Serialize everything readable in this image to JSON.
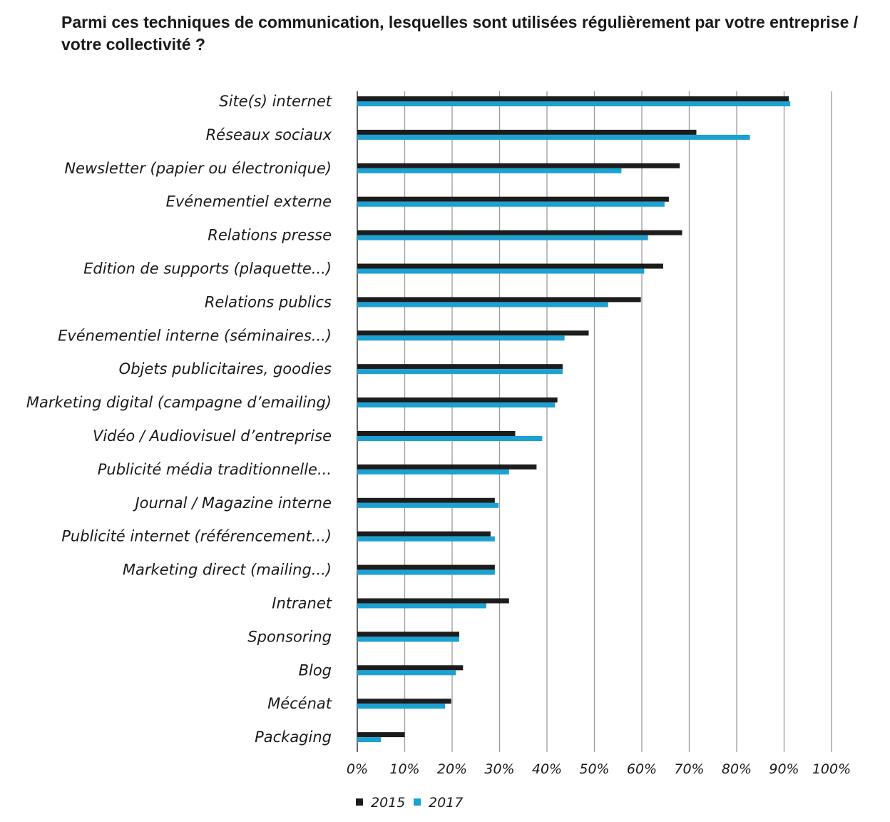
{
  "chart_data": {
    "type": "bar",
    "orientation": "horizontal",
    "title": "Parmi ces techniques de communication, lesquelles sont utilisées régulièrement par votre entreprise / votre collectivité ?",
    "categories": [
      "Site(s) internet",
      "Réseaux sociaux",
      "Newsletter (papier ou électronique)",
      "Evénementiel externe",
      "Relations presse",
      "Edition de supports (plaquette...)",
      "Relations publics",
      "Evénementiel interne (séminaires...)",
      "Objets publicitaires, goodies",
      "Marketing digital (campagne d’emailing)",
      "Vidéo / Audiovisuel d’entreprise",
      "Publicité média traditionnelle...",
      "Journal / Magazine interne",
      "Publicité internet (référencement...)",
      "Marketing direct (mailing...)",
      "Intranet",
      "Sponsoring",
      "Blog",
      "Mécénat",
      "Packaging"
    ],
    "series": [
      {
        "name": "2015",
        "color": "#1c1c1c",
        "values": [
          91,
          71.5,
          68,
          65.7,
          68.5,
          64.5,
          59.8,
          48.8,
          43.3,
          42.2,
          33.3,
          37.8,
          29,
          28.1,
          29,
          32,
          21.5,
          22.3,
          19.8,
          10
        ]
      },
      {
        "name": "2017",
        "color": "#1ba1d2",
        "values": [
          91.3,
          82.8,
          55.7,
          64.8,
          61.3,
          60.5,
          52.9,
          43.7,
          43.3,
          41.7,
          39,
          32,
          29.8,
          29,
          29,
          27.2,
          21.5,
          20.8,
          18.5,
          5
        ]
      }
    ],
    "xlim": [
      0,
      100
    ],
    "xticks": [
      "0%",
      "10%",
      "20%",
      "30%",
      "40%",
      "50%",
      "60%",
      "70%",
      "80%",
      "90%",
      "100%"
    ],
    "grid": true,
    "legend_position": "bottom-center"
  }
}
